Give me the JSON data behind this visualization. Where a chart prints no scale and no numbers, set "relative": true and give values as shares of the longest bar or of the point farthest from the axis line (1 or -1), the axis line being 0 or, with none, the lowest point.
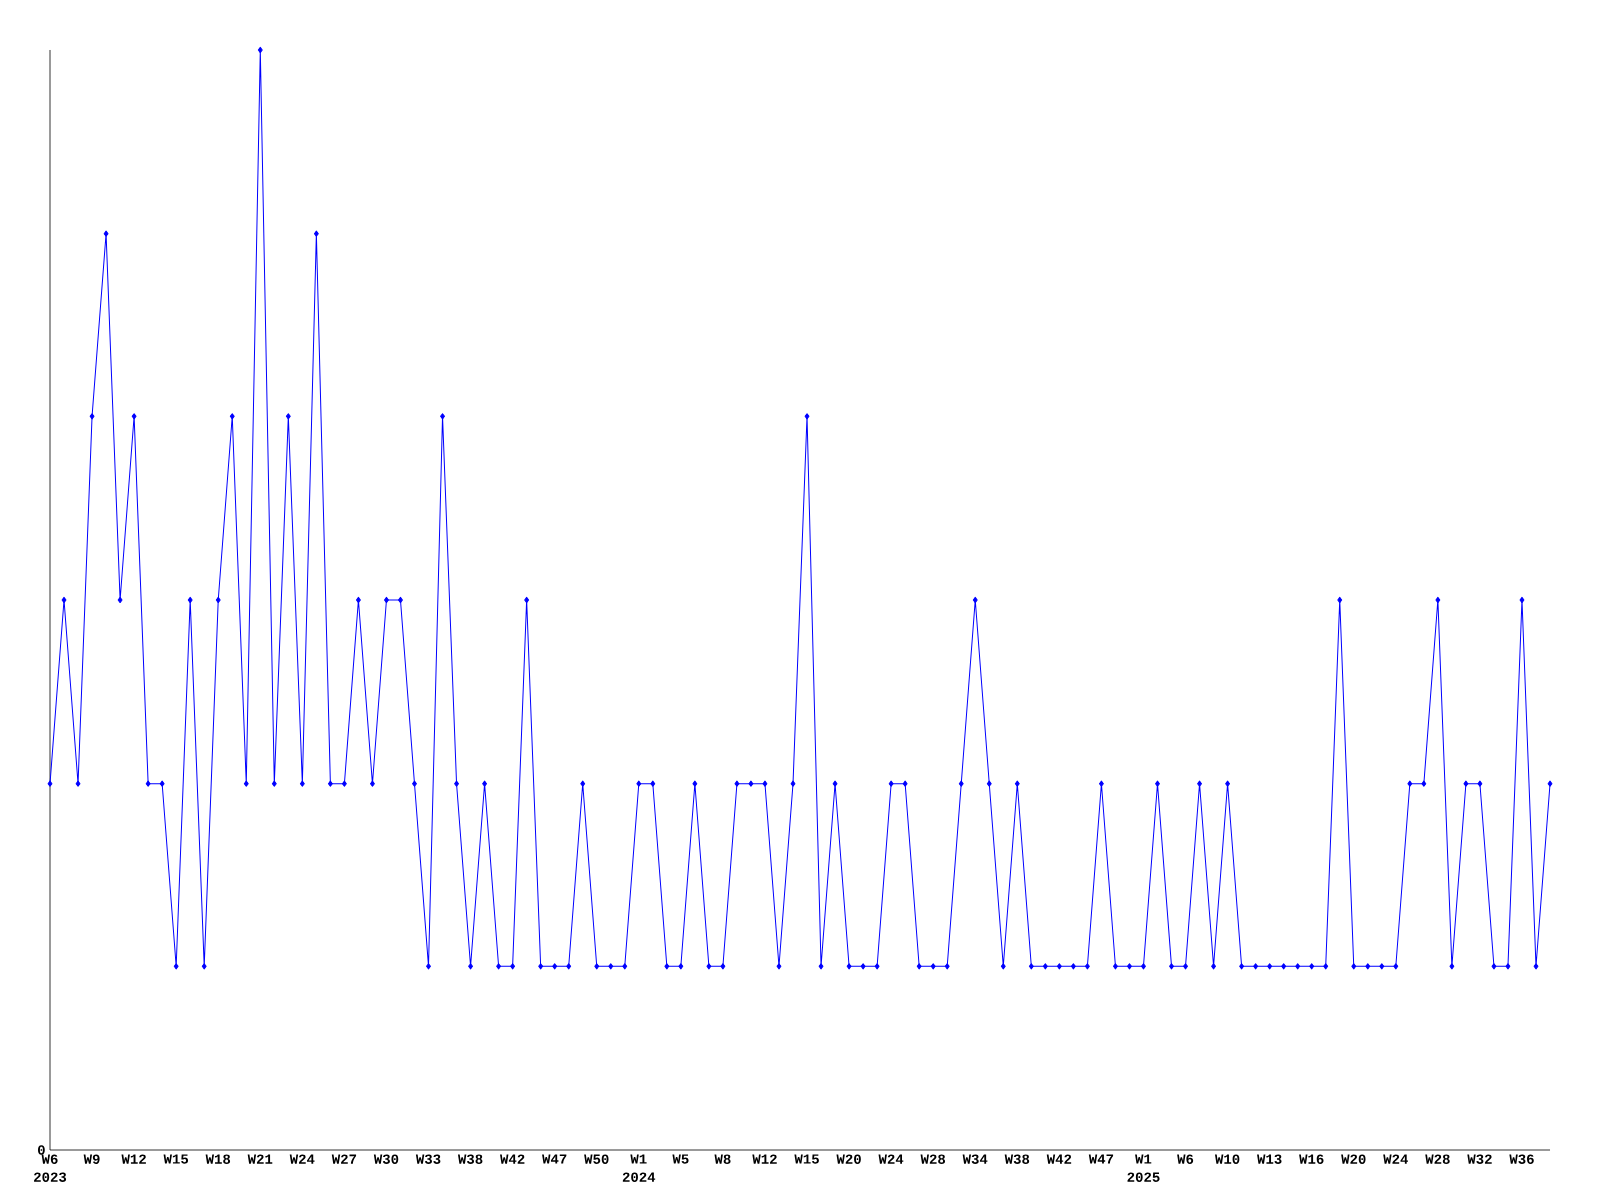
{
  "chart_data": {
    "type": "line",
    "relative": true,
    "marker": "diamond",
    "line_style": "solid",
    "categories": [
      "W6",
      null,
      null,
      "W9",
      null,
      null,
      "W12",
      null,
      null,
      "W15",
      null,
      null,
      "W18",
      null,
      null,
      "W21",
      null,
      null,
      "W24",
      null,
      null,
      "W27",
      null,
      null,
      "W30",
      null,
      null,
      "W33",
      null,
      null,
      "W38",
      null,
      null,
      "W42",
      null,
      null,
      "W47",
      null,
      null,
      "W50",
      null,
      null,
      "W1",
      null,
      null,
      "W5",
      null,
      null,
      "W8",
      null,
      null,
      "W12",
      null,
      null,
      "W15",
      null,
      null,
      "W20",
      null,
      null,
      "W24",
      null,
      null,
      "W28",
      null,
      null,
      "W34",
      null,
      null,
      "W38",
      null,
      null,
      "W42",
      null,
      null,
      "W47",
      null,
      null,
      "W1",
      null,
      null,
      "W6",
      null,
      null,
      "W10",
      null,
      null,
      "W13",
      null,
      null,
      "W16",
      null,
      null,
      "W20",
      null,
      null,
      "W24",
      null,
      null,
      "W28",
      null,
      null,
      "W32",
      null,
      null,
      "W36",
      null,
      null
    ],
    "series": [
      {
        "color": "#0000ff",
        "values": [
          0.333,
          0.5,
          0.333,
          0.667,
          0.833,
          0.5,
          0.667,
          0.333,
          0.333,
          0.167,
          0.5,
          0.167,
          0.5,
          0.667,
          0.333,
          1,
          0.333,
          0.667,
          0.333,
          0.833,
          0.333,
          0.333,
          0.5,
          0.333,
          0.5,
          0.5,
          0.333,
          0.167,
          0.667,
          0.333,
          0.167,
          0.333,
          0.167,
          0.167,
          0.5,
          0.167,
          0.167,
          0.167,
          0.333,
          0.167,
          0.167,
          0.167,
          0.333,
          0.333,
          0.167,
          0.167,
          0.333,
          0.167,
          0.167,
          0.333,
          0.333,
          0.333,
          0.167,
          0.333,
          0.667,
          0.167,
          0.333,
          0.167,
          0.167,
          0.167,
          0.333,
          0.333,
          0.167,
          0.167,
          0.167,
          0.333,
          0.5,
          0.333,
          0.167,
          0.333,
          0.167,
          0.167,
          0.167,
          0.167,
          0.167,
          0.333,
          0.167,
          0.167,
          0.167,
          0.333,
          0.167,
          0.167,
          0.333,
          0.167,
          0.333,
          0.167,
          0.167,
          0.167,
          0.167,
          0.167,
          0.167,
          0.167,
          0.5,
          0.167,
          0.167,
          0.167,
          0.167,
          0.333,
          0.333,
          0.5,
          0.167,
          0.333,
          0.333,
          0.167,
          0.167,
          0.5,
          0.167,
          0.333
        ]
      }
    ],
    "annotations": [
      "0",
      "2023",
      "2024",
      "2025"
    ]
  }
}
